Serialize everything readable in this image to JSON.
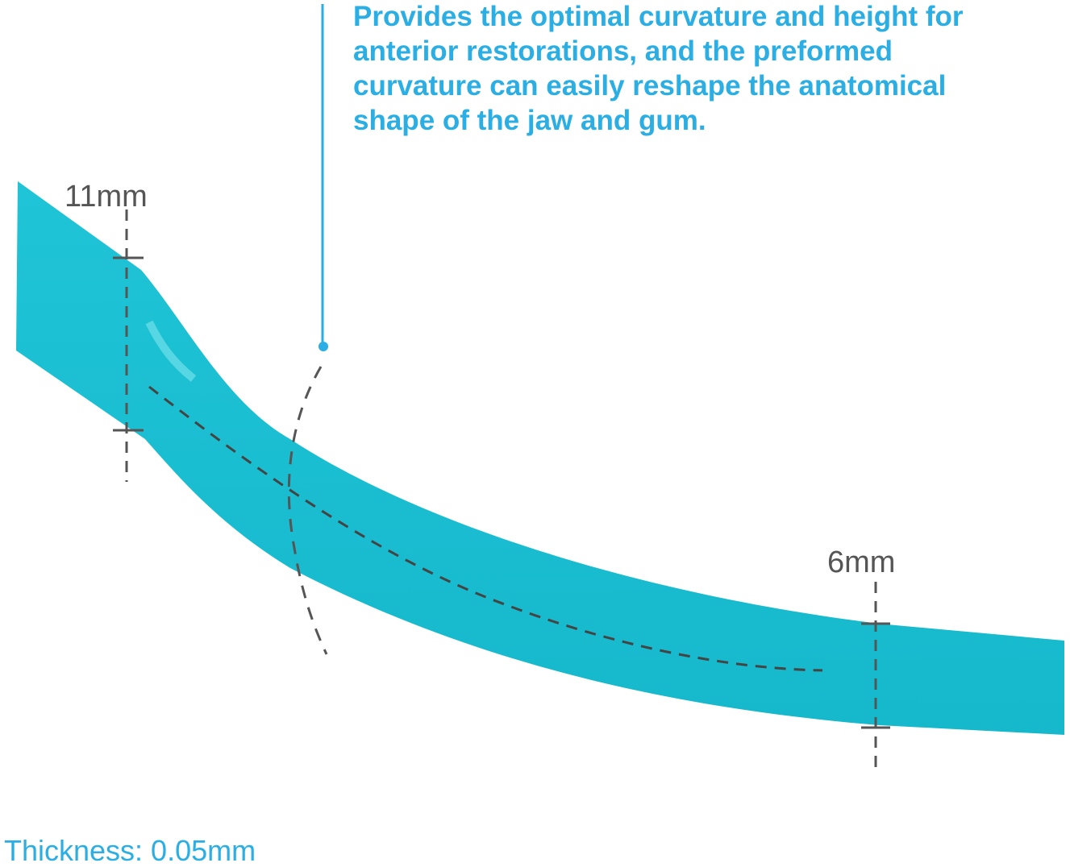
{
  "description": [
    "Provides the optimal curvature and height for",
    "anterior restorations, and the preformed",
    "curvature can easily reshape the anatomical",
    "shape of the jaw and gum."
  ],
  "height_left": "11mm",
  "height_right": "6mm",
  "thickness": "Thickness: 0.05mm"
}
